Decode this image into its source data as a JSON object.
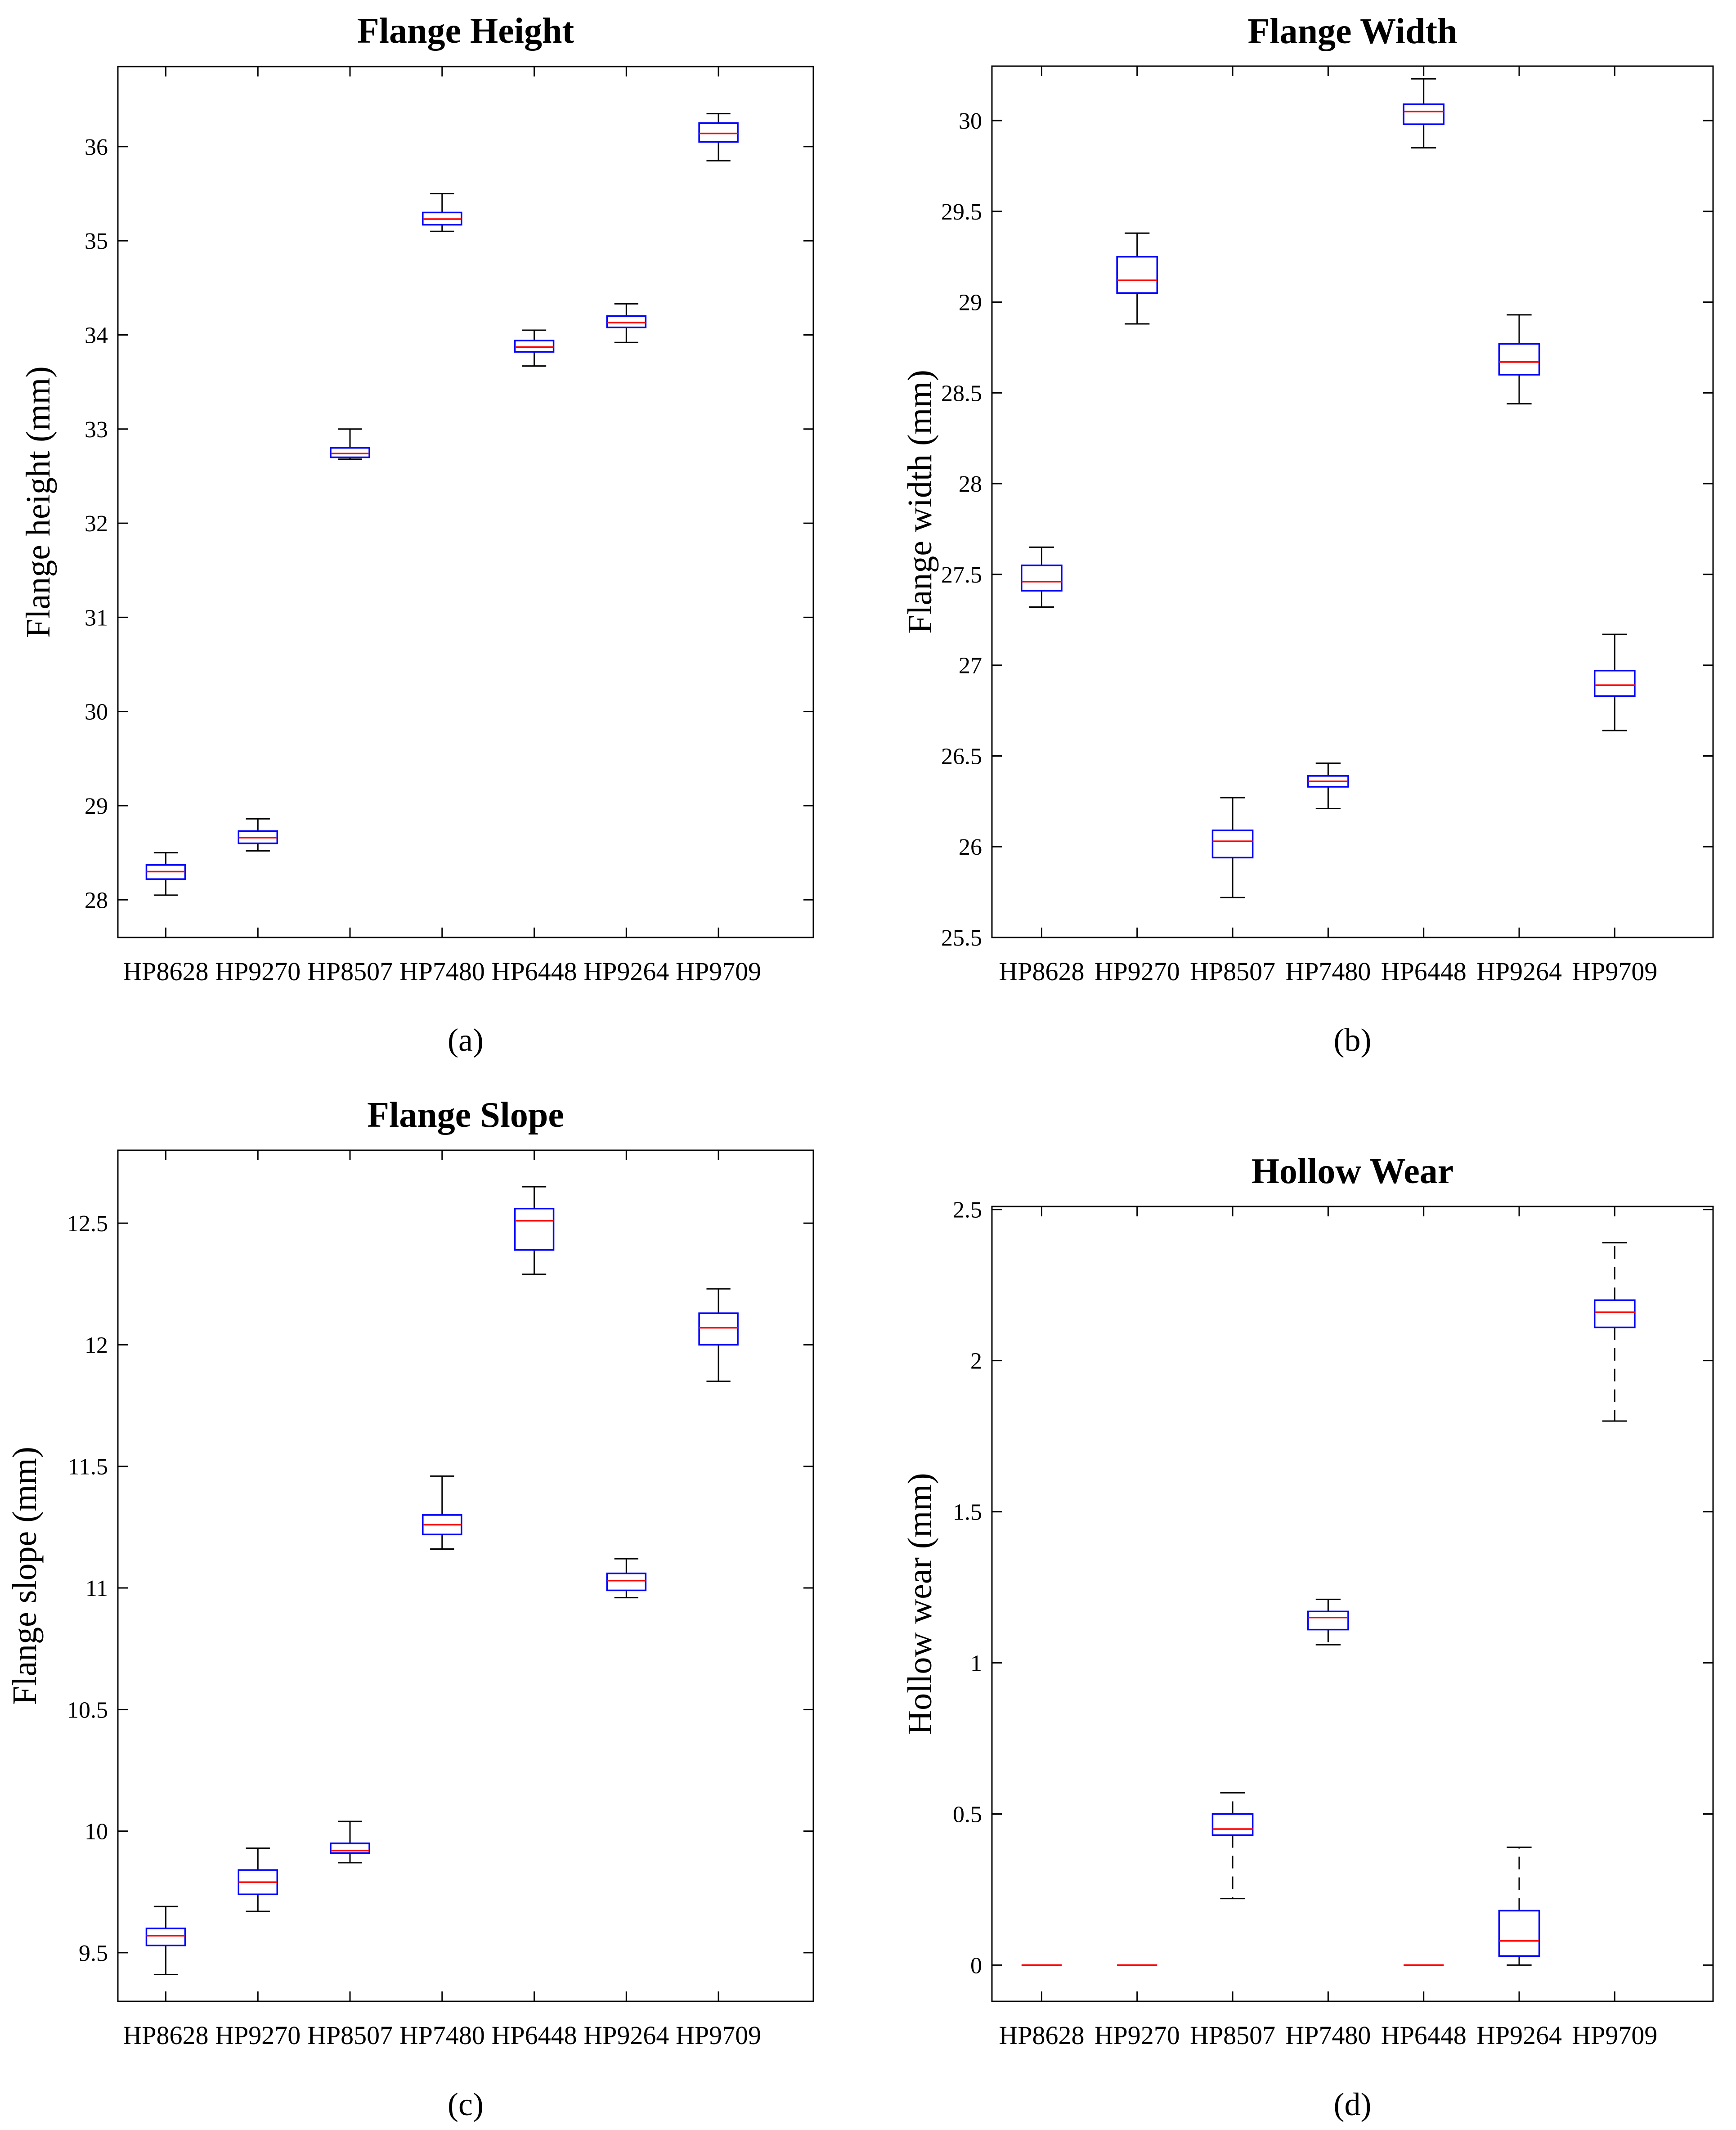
{
  "chart_data": [
    {
      "type": "box",
      "panel": "(a)",
      "title": "Flange Height",
      "xlabel": "",
      "ylabel": "Flange height (mm)",
      "ylim": [
        27.6,
        36.85
      ],
      "yticks": [
        28,
        29,
        30,
        31,
        32,
        33,
        34,
        35,
        36
      ],
      "categories": [
        "HP8628",
        "HP9270",
        "HP8507",
        "HP7480",
        "HP6448",
        "HP9264",
        "HP9709"
      ],
      "boxes": [
        {
          "min": 28.05,
          "q1": 28.22,
          "median": 28.3,
          "q3": 28.37,
          "max": 28.5
        },
        {
          "min": 28.52,
          "q1": 28.6,
          "median": 28.66,
          "q3": 28.73,
          "max": 28.86
        },
        {
          "min": 32.68,
          "q1": 32.7,
          "median": 32.74,
          "q3": 32.8,
          "max": 33.0
        },
        {
          "min": 35.1,
          "q1": 35.17,
          "median": 35.23,
          "q3": 35.3,
          "max": 35.5
        },
        {
          "min": 33.67,
          "q1": 33.82,
          "median": 33.87,
          "q3": 33.94,
          "max": 34.05
        },
        {
          "min": 33.92,
          "q1": 34.08,
          "median": 34.13,
          "q3": 34.2,
          "max": 34.33
        },
        {
          "min": 35.85,
          "q1": 36.05,
          "median": 36.14,
          "q3": 36.25,
          "max": 36.35
        }
      ]
    },
    {
      "type": "box",
      "panel": "(b)",
      "title": "Flange Width",
      "xlabel": "",
      "ylabel": "Flange width (mm)",
      "ylim": [
        25.5,
        30.3
      ],
      "yticks": [
        25.5,
        26,
        26.5,
        27,
        27.5,
        28,
        28.5,
        29,
        29.5,
        30
      ],
      "categories": [
        "HP8628",
        "HP9270",
        "HP8507",
        "HP7480",
        "HP6448",
        "HP9264",
        "HP9709"
      ],
      "boxes": [
        {
          "min": 27.32,
          "q1": 27.41,
          "median": 27.46,
          "q3": 27.55,
          "max": 27.65
        },
        {
          "min": 28.88,
          "q1": 29.05,
          "median": 29.12,
          "q3": 29.25,
          "max": 29.38
        },
        {
          "min": 25.72,
          "q1": 25.94,
          "median": 26.03,
          "q3": 26.09,
          "max": 26.27
        },
        {
          "min": 26.21,
          "q1": 26.33,
          "median": 26.36,
          "q3": 26.39,
          "max": 26.46
        },
        {
          "min": 29.85,
          "q1": 29.98,
          "median": 30.05,
          "q3": 30.09,
          "max": 30.23
        },
        {
          "min": 28.44,
          "q1": 28.6,
          "median": 28.67,
          "q3": 28.77,
          "max": 28.93
        },
        {
          "min": 26.64,
          "q1": 26.83,
          "median": 26.89,
          "q3": 26.97,
          "max": 27.17
        }
      ]
    },
    {
      "type": "box",
      "panel": "(c)",
      "title": "Flange Slope",
      "xlabel": "",
      "ylabel": "Flange slope (mm)",
      "ylim": [
        9.3,
        12.8
      ],
      "yticks": [
        9.5,
        10,
        10.5,
        11,
        11.5,
        12,
        12.5
      ],
      "categories": [
        "HP8628",
        "HP9270",
        "HP8507",
        "HP7480",
        "HP6448",
        "HP9264",
        "HP9709"
      ],
      "boxes": [
        {
          "min": 9.41,
          "q1": 9.53,
          "median": 9.57,
          "q3": 9.6,
          "max": 9.69
        },
        {
          "min": 9.67,
          "q1": 9.74,
          "median": 9.79,
          "q3": 9.84,
          "max": 9.93
        },
        {
          "min": 9.87,
          "q1": 9.91,
          "median": 9.92,
          "q3": 9.95,
          "max": 10.04
        },
        {
          "min": 11.16,
          "q1": 11.22,
          "median": 11.26,
          "q3": 11.3,
          "max": 11.46
        },
        {
          "min": 12.29,
          "q1": 12.39,
          "median": 12.51,
          "q3": 12.56,
          "max": 12.65
        },
        {
          "min": 10.96,
          "q1": 10.99,
          "median": 11.03,
          "q3": 11.06,
          "max": 11.12
        },
        {
          "min": 11.85,
          "q1": 12.0,
          "median": 12.07,
          "q3": 12.13,
          "max": 12.23
        }
      ]
    },
    {
      "type": "box",
      "panel": "(d)",
      "title": "Hollow Wear",
      "xlabel": "",
      "ylabel": "Hollow wear (mm)",
      "ylim": [
        -0.12,
        2.51
      ],
      "yticks": [
        0,
        0.5,
        1,
        1.5,
        2,
        2.5
      ],
      "categories": [
        "HP8628",
        "HP9270",
        "HP8507",
        "HP7480",
        "HP6448",
        "HP9264",
        "HP9709"
      ],
      "dashed_whiskers": true,
      "boxes": [
        {
          "min": 0,
          "q1": 0,
          "median": 0,
          "q3": 0,
          "max": 0
        },
        {
          "min": 0,
          "q1": 0,
          "median": 0,
          "q3": 0,
          "max": 0
        },
        {
          "min": 0.22,
          "q1": 0.43,
          "median": 0.45,
          "q3": 0.5,
          "max": 0.57
        },
        {
          "min": 1.06,
          "q1": 1.11,
          "median": 1.15,
          "q3": 1.17,
          "max": 1.21
        },
        {
          "min": 0,
          "q1": 0,
          "median": 0,
          "q3": 0,
          "max": 0
        },
        {
          "min": 0.0,
          "q1": 0.03,
          "median": 0.08,
          "q3": 0.18,
          "max": 0.39
        },
        {
          "min": 1.8,
          "q1": 2.11,
          "median": 2.16,
          "q3": 2.2,
          "max": 2.39
        }
      ]
    }
  ],
  "colors": {
    "box": "#0000ff",
    "median": "#ff0000",
    "whisker": "#000000",
    "axis": "#000000"
  }
}
